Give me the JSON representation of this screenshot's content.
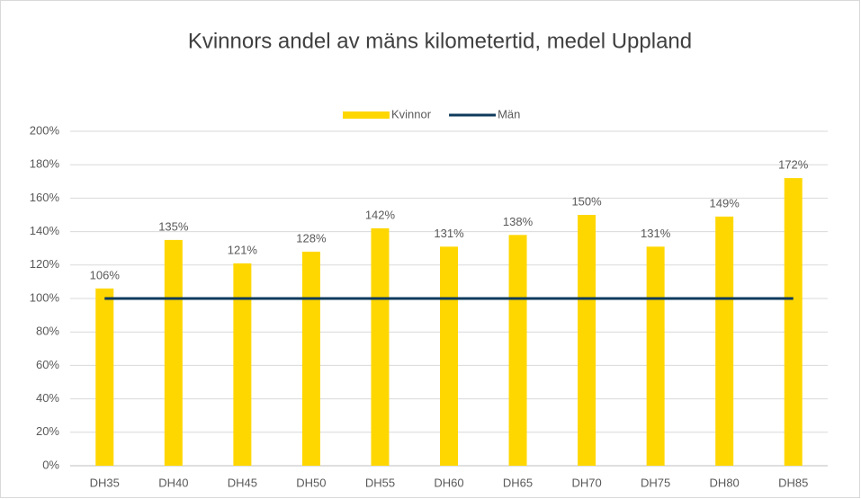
{
  "chart_data": {
    "type": "bar",
    "title": "Kvinnors andel av mäns kilometertid, medel Uppland",
    "categories": [
      "DH35",
      "DH40",
      "DH45",
      "DH50",
      "DH55",
      "DH60",
      "DH65",
      "DH70",
      "DH75",
      "DH80",
      "DH85"
    ],
    "series": [
      {
        "name": "Kvinnor",
        "type": "bar",
        "color": "#ffd700",
        "values": [
          106,
          135,
          121,
          128,
          142,
          131,
          138,
          150,
          131,
          149,
          172
        ],
        "value_labels": [
          "106%",
          "135%",
          "121%",
          "128%",
          "142%",
          "131%",
          "138%",
          "150%",
          "131%",
          "149%",
          "172%"
        ]
      },
      {
        "name": "Män",
        "type": "line",
        "color": "#0e3a5c",
        "values": [
          100,
          100,
          100,
          100,
          100,
          100,
          100,
          100,
          100,
          100,
          100
        ]
      }
    ],
    "ylim": [
      0,
      200
    ],
    "yticks": [
      {
        "value": 0,
        "label": "0%"
      },
      {
        "value": 20,
        "label": "20%"
      },
      {
        "value": 40,
        "label": "40%"
      },
      {
        "value": 60,
        "label": "60%"
      },
      {
        "value": 80,
        "label": "80%"
      },
      {
        "value": 100,
        "label": "100%"
      },
      {
        "value": 120,
        "label": "120%"
      },
      {
        "value": 140,
        "label": "140%"
      },
      {
        "value": 160,
        "label": "160%"
      },
      {
        "value": 180,
        "label": "180%"
      },
      {
        "value": 200,
        "label": "200%"
      }
    ],
    "grid": true,
    "legend": "top"
  }
}
